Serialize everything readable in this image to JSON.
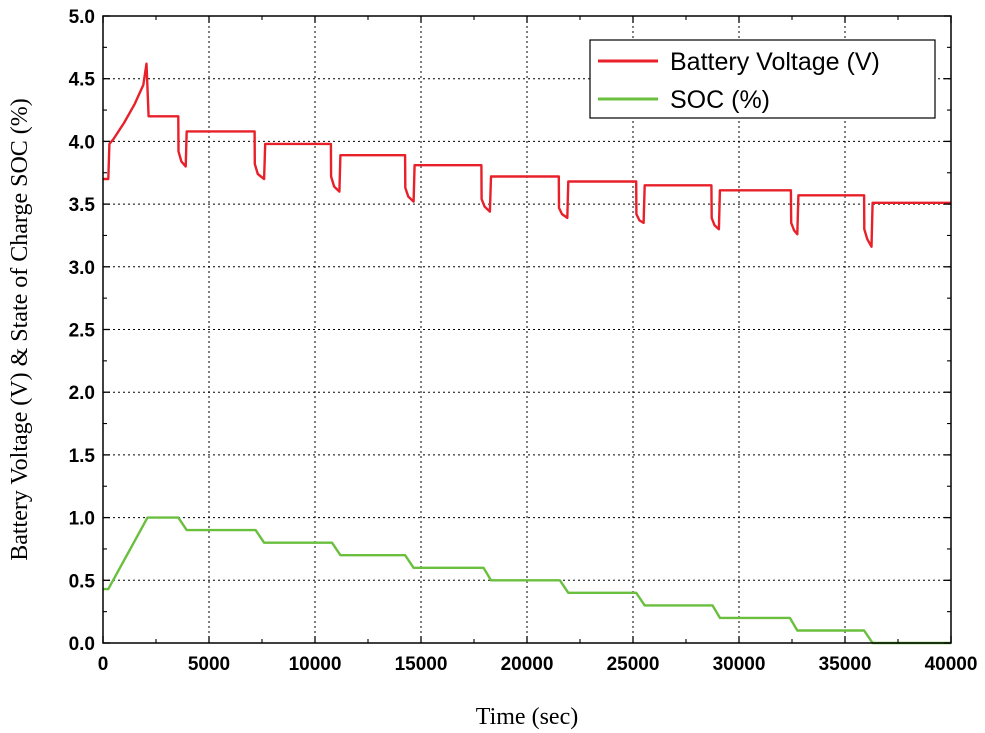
{
  "chart_data": {
    "type": "line",
    "title": "",
    "xlabel": "Time (sec)",
    "ylabel": "Battery Voltage (V) & State of Charge SOC (%)",
    "xlim": [
      0,
      40000
    ],
    "ylim": [
      0,
      5.0
    ],
    "xticks": [
      0,
      5000,
      10000,
      15000,
      20000,
      25000,
      30000,
      35000,
      40000
    ],
    "xtick_labels": [
      "0",
      "5000",
      "10000",
      "15000",
      "20000",
      "25000",
      "30000",
      "35000",
      "40000"
    ],
    "yticks": [
      0,
      0.5,
      1.0,
      1.5,
      2.0,
      2.5,
      3.0,
      3.5,
      4.0,
      4.5,
      5.0
    ],
    "ytick_labels": [
      "0.0",
      "0.5",
      "1.0",
      "1.5",
      "2.0",
      "2.5",
      "3.0",
      "3.5",
      "4.0",
      "4.5",
      "5.0"
    ],
    "grid": true,
    "legend_position": "top-right",
    "series": [
      {
        "name": "Battery Voltage (V)",
        "color": "#e8202a",
        "points": [
          [
            0,
            3.7
          ],
          [
            250,
            3.7
          ],
          [
            300,
            3.98
          ],
          [
            500,
            4.02
          ],
          [
            1000,
            4.15
          ],
          [
            1500,
            4.3
          ],
          [
            1900,
            4.45
          ],
          [
            2050,
            4.62
          ],
          [
            2150,
            4.2
          ],
          [
            3550,
            4.2
          ],
          [
            3560,
            3.92
          ],
          [
            3700,
            3.84
          ],
          [
            3900,
            3.8
          ],
          [
            3950,
            4.08
          ],
          [
            7150,
            4.08
          ],
          [
            7160,
            3.82
          ],
          [
            7300,
            3.74
          ],
          [
            7600,
            3.7
          ],
          [
            7650,
            3.98
          ],
          [
            10750,
            3.98
          ],
          [
            10760,
            3.72
          ],
          [
            10900,
            3.64
          ],
          [
            11150,
            3.6
          ],
          [
            11200,
            3.89
          ],
          [
            14250,
            3.89
          ],
          [
            14260,
            3.63
          ],
          [
            14400,
            3.56
          ],
          [
            14650,
            3.52
          ],
          [
            14700,
            3.81
          ],
          [
            17850,
            3.81
          ],
          [
            17860,
            3.54
          ],
          [
            18000,
            3.48
          ],
          [
            18250,
            3.44
          ],
          [
            18300,
            3.72
          ],
          [
            21500,
            3.72
          ],
          [
            21510,
            3.47
          ],
          [
            21650,
            3.42
          ],
          [
            21900,
            3.39
          ],
          [
            21950,
            3.68
          ],
          [
            25150,
            3.68
          ],
          [
            25160,
            3.42
          ],
          [
            25300,
            3.37
          ],
          [
            25500,
            3.35
          ],
          [
            25550,
            3.65
          ],
          [
            28700,
            3.65
          ],
          [
            28710,
            3.39
          ],
          [
            28850,
            3.33
          ],
          [
            29050,
            3.3
          ],
          [
            29100,
            3.61
          ],
          [
            32450,
            3.61
          ],
          [
            32460,
            3.35
          ],
          [
            32600,
            3.29
          ],
          [
            32750,
            3.26
          ],
          [
            32800,
            3.57
          ],
          [
            35900,
            3.57
          ],
          [
            35910,
            3.3
          ],
          [
            36050,
            3.22
          ],
          [
            36250,
            3.16
          ],
          [
            36300,
            3.51
          ],
          [
            40000,
            3.51
          ]
        ]
      },
      {
        "name": "SOC (%)",
        "color": "#6abf3f",
        "points": [
          [
            0,
            0.43
          ],
          [
            250,
            0.43
          ],
          [
            2100,
            1.0
          ],
          [
            3550,
            1.0
          ],
          [
            3950,
            0.9
          ],
          [
            7200,
            0.9
          ],
          [
            7600,
            0.8
          ],
          [
            10800,
            0.8
          ],
          [
            11200,
            0.7
          ],
          [
            14250,
            0.7
          ],
          [
            14650,
            0.6
          ],
          [
            17950,
            0.6
          ],
          [
            18300,
            0.5
          ],
          [
            21550,
            0.5
          ],
          [
            21950,
            0.4
          ],
          [
            25150,
            0.4
          ],
          [
            25550,
            0.3
          ],
          [
            28750,
            0.3
          ],
          [
            29100,
            0.2
          ],
          [
            32400,
            0.2
          ],
          [
            32750,
            0.1
          ],
          [
            35900,
            0.1
          ],
          [
            36300,
            0.0
          ],
          [
            40000,
            0.0
          ]
        ]
      }
    ]
  }
}
